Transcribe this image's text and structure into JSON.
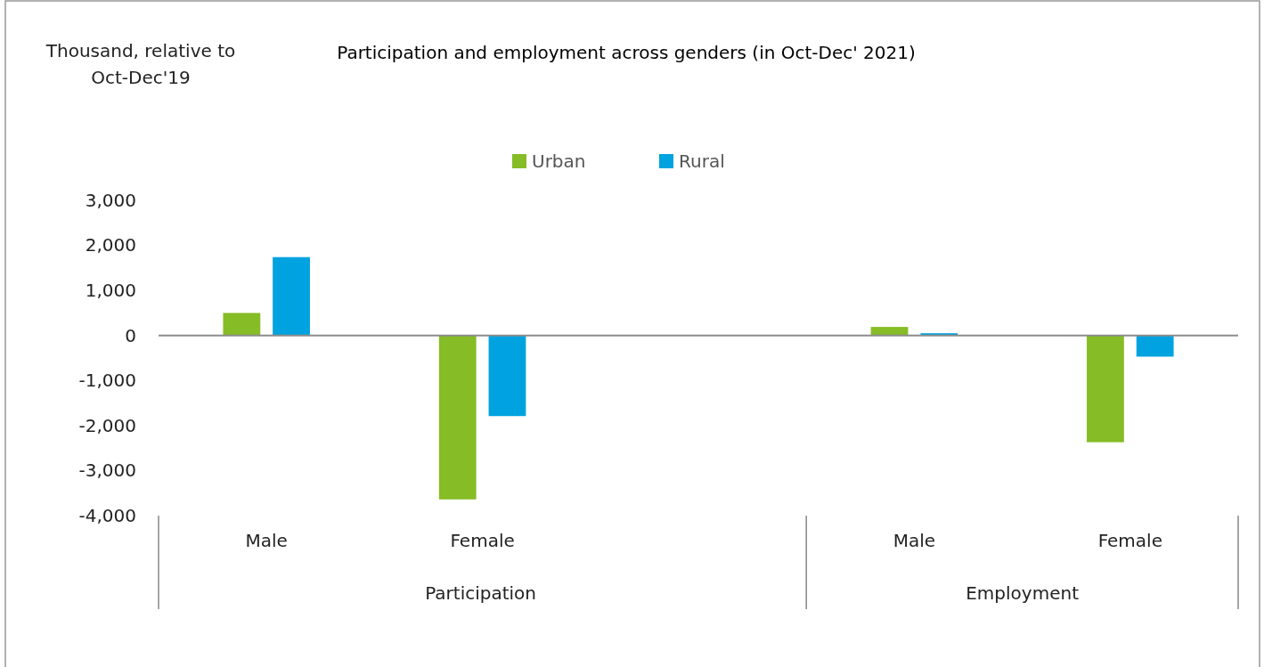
{
  "chart_data": {
    "type": "bar",
    "title": "Participation and employment across genders (in Oct-Dec' 2021)",
    "categories": [
      "Male",
      "Female",
      null,
      "Male",
      "Female"
    ],
    "series": [
      {
        "name": "Urban",
        "color": "#86bc25",
        "values": [
          500,
          -3640,
          null,
          190,
          -2370
        ]
      },
      {
        "name": "Rural",
        "color": "#00a3e0",
        "values": [
          1740,
          -1790,
          null,
          50,
          -470
        ]
      }
    ],
    "annotations": [
      "Thousand, relative to Oct-Dec'19",
      "Participation",
      "Employment"
    ],
    "ylim": [
      -4000,
      3000
    ],
    "yticks": [
      {
        "value": -4000,
        "label": "-4,000"
      },
      {
        "value": -3000,
        "label": "-3,000"
      },
      {
        "value": -2000,
        "label": "-2,000"
      },
      {
        "value": -1000,
        "label": "-1,000"
      },
      0,
      {
        "value": 1000,
        "label": "1,000"
      },
      {
        "value": 2000,
        "label": "2,000"
      },
      {
        "value": 3000,
        "label": "3,000"
      }
    ],
    "legend": "top"
  }
}
